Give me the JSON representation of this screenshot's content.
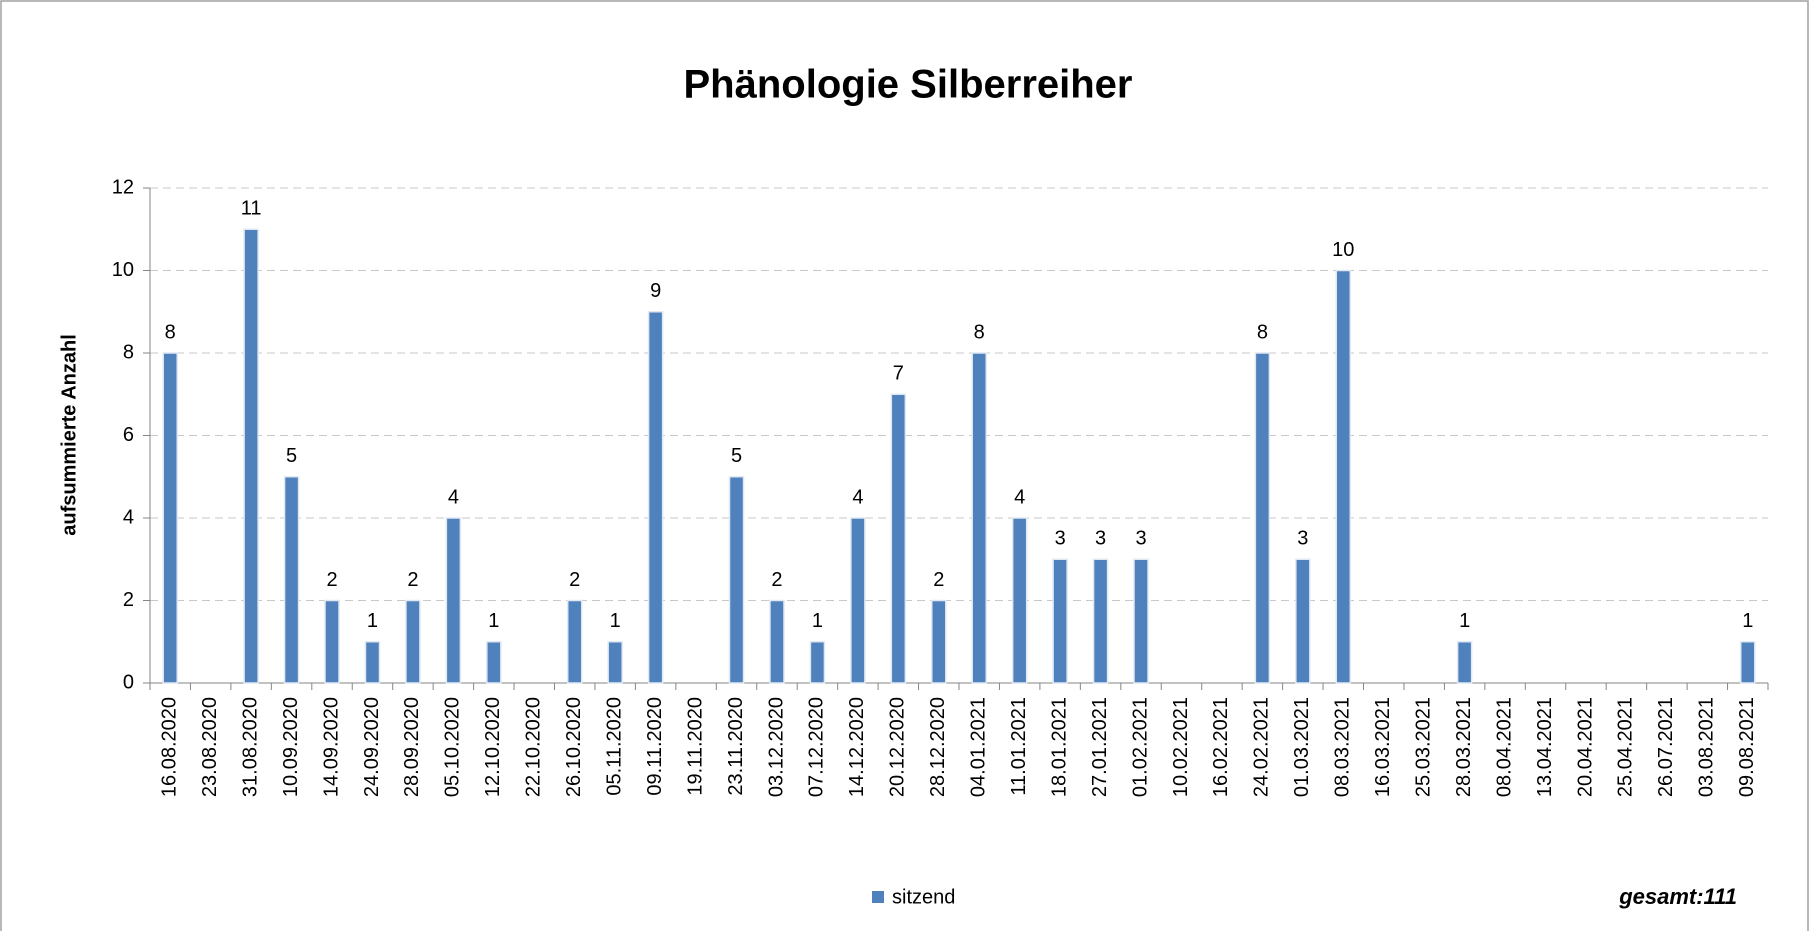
{
  "chart_data": {
    "type": "bar",
    "title": "Phänologie Silberreiher",
    "y_label": "aufsummierte Anzahl",
    "annotation": "gesamt:111",
    "categories": [
      "16.08.2020",
      "23.08.2020",
      "31.08.2020",
      "10.09.2020",
      "14.09.2020",
      "24.09.2020",
      "28.09.2020",
      "05.10.2020",
      "12.10.2020",
      "22.10.2020",
      "26.10.2020",
      "05.11.2020",
      "09.11.2020",
      "19.11.2020",
      "23.11.2020",
      "03.12.2020",
      "07.12.2020",
      "14.12.2020",
      "20.12.2020",
      "28.12.2020",
      "04.01.2021",
      "11.01.2021",
      "18.01.2021",
      "27.01.2021",
      "01.02.2021",
      "10.02.2021",
      "16.02.2021",
      "24.02.2021",
      "01.03.2021",
      "08.03.2021",
      "16.03.2021",
      "25.03.2021",
      "28.03.2021",
      "08.04.2021",
      "13.04.2021",
      "20.04.2021",
      "25.04.2021",
      "26.07.2021",
      "03.08.2021",
      "09.08.2021"
    ],
    "series": [
      {
        "name": "sitzend",
        "color": "#4f81bd",
        "values": [
          8,
          null,
          11,
          5,
          2,
          1,
          2,
          4,
          1,
          null,
          2,
          1,
          9,
          null,
          5,
          2,
          1,
          4,
          7,
          2,
          8,
          4,
          3,
          3,
          3,
          null,
          null,
          8,
          3,
          10,
          null,
          null,
          1,
          null,
          null,
          null,
          null,
          null,
          null,
          1
        ]
      }
    ],
    "ylim": [
      0,
      12
    ],
    "yticks": [
      0,
      2,
      4,
      6,
      8,
      10,
      12
    ],
    "grid": true,
    "legend": "bottom"
  }
}
